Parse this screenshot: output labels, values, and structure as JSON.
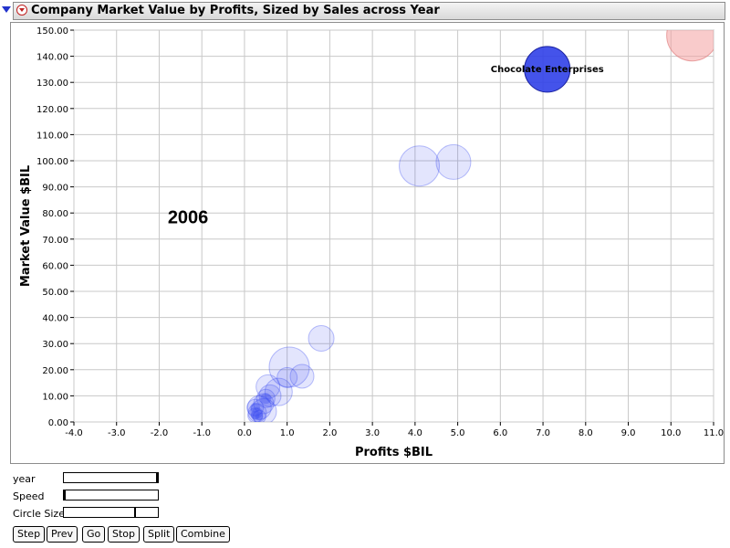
{
  "window": {
    "title": "Company Market Value by Profits, Sized by Sales across Year"
  },
  "chart_data": {
    "type": "scatter",
    "xlabel": "Profits $BIL",
    "ylabel": "Market Value $BIL",
    "xlim": [
      -4.0,
      11.0
    ],
    "ylim": [
      0.0,
      150.0
    ],
    "xticks": [
      "-4.0",
      "-3.0",
      "-2.0",
      "-1.0",
      "0.0",
      "1.0",
      "2.0",
      "3.0",
      "4.0",
      "5.0",
      "6.0",
      "7.0",
      "8.0",
      "9.0",
      "10.0",
      "11.0"
    ],
    "yticks": [
      "0.00",
      "10.00",
      "20.00",
      "30.00",
      "40.00",
      "50.00",
      "60.00",
      "70.00",
      "80.00",
      "90.00",
      "100.00",
      "110.00",
      "120.00",
      "130.00",
      "140.00",
      "150.00"
    ],
    "grid": true,
    "annotation": "2006",
    "highlight_label": "Chocolate Enterprises",
    "colors": {
      "bubble": "#3a4af0",
      "highlight": "#3040e8",
      "outlier": "#f4a0a0",
      "grid": "#c8c8c8"
    },
    "points": [
      {
        "x": 10.5,
        "y": 148.0,
        "size": 28,
        "color": "outlier"
      },
      {
        "x": 7.1,
        "y": 135.0,
        "size": 25,
        "color": "highlight",
        "label": "Chocolate Enterprises"
      },
      {
        "x": 4.1,
        "y": 98.0,
        "size": 22,
        "color": "faint"
      },
      {
        "x": 4.9,
        "y": 99.5,
        "size": 19,
        "color": "faint"
      },
      {
        "x": 1.8,
        "y": 32.0,
        "size": 14,
        "color": "faint"
      },
      {
        "x": 1.05,
        "y": 21.0,
        "size": 22,
        "color": "faint"
      },
      {
        "x": 1.35,
        "y": 17.5,
        "size": 13,
        "color": "faint"
      },
      {
        "x": 1.0,
        "y": 17.0,
        "size": 11,
        "color": "faint"
      },
      {
        "x": 0.55,
        "y": 13.5,
        "size": 13,
        "color": "faint"
      },
      {
        "x": 0.8,
        "y": 11.5,
        "size": 15,
        "color": "faint"
      },
      {
        "x": 0.6,
        "y": 10.0,
        "size": 12,
        "color": "faint"
      },
      {
        "x": 0.5,
        "y": 9.0,
        "size": 10,
        "color": "faint"
      },
      {
        "x": 0.45,
        "y": 7.0,
        "size": 11,
        "color": "faint"
      },
      {
        "x": 0.35,
        "y": 5.5,
        "size": 13,
        "color": "faint"
      },
      {
        "x": 0.45,
        "y": 4.0,
        "size": 14,
        "color": "faint"
      },
      {
        "x": 0.25,
        "y": 5.5,
        "size": 9,
        "color": "faint"
      },
      {
        "x": 0.3,
        "y": 3.5,
        "size": 10,
        "color": "faint"
      },
      {
        "x": 0.25,
        "y": 2.5,
        "size": 8,
        "color": "faint"
      },
      {
        "x": 0.35,
        "y": 2.0,
        "size": 7,
        "color": "faint"
      }
    ]
  },
  "controls": {
    "year_label": "year",
    "speed_label": "Speed",
    "circle_size_label": "Circle Size",
    "year_value": 1.0,
    "speed_value": 0.0,
    "circle_size_value": 0.76
  },
  "buttons": {
    "step": "Step",
    "prev": "Prev",
    "go": "Go",
    "stop": "Stop",
    "split": "Split",
    "combine": "Combine"
  }
}
